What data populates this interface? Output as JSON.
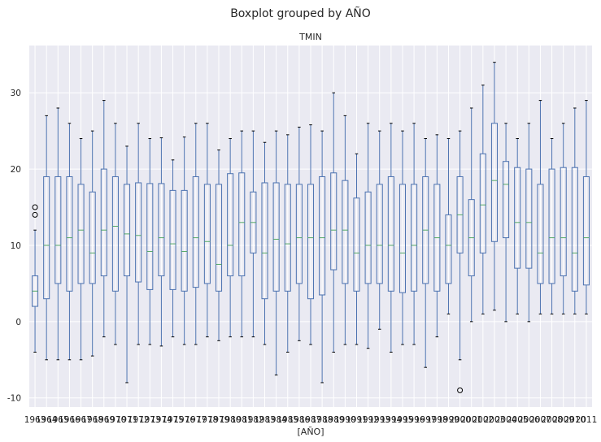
{
  "chart_data": {
    "type": "boxplot",
    "suptitle": "Boxplot grouped by AÑO",
    "title": "TMIN",
    "xlabel": "[AÑO]",
    "ylabel": "",
    "ylim": [
      -11.2,
      36.2
    ],
    "yticks": [
      -10,
      0,
      10,
      20,
      30
    ],
    "grid": true,
    "colors": {
      "background": "#eaeaf2",
      "grid": "#ffffff",
      "box": "#4c72b0",
      "median": "#55a868",
      "flier": "#000000",
      "text": "#262626"
    },
    "boxes": [
      {
        "x": "1963",
        "whislo": -4,
        "q1": 2,
        "med": 4,
        "q3": 6,
        "whishi": 12,
        "fliers": [
          14,
          15
        ]
      },
      {
        "x": "1964",
        "whislo": -5,
        "q1": 3,
        "med": 10,
        "q3": 19,
        "whishi": 27,
        "fliers": []
      },
      {
        "x": "1965",
        "whislo": -5,
        "q1": 5,
        "med": 10,
        "q3": 19,
        "whishi": 28,
        "fliers": []
      },
      {
        "x": "1966",
        "whislo": -5,
        "q1": 4,
        "med": 11,
        "q3": 19,
        "whishi": 26,
        "fliers": []
      },
      {
        "x": "1967",
        "whislo": -5,
        "q1": 5,
        "med": 12,
        "q3": 18,
        "whishi": 24,
        "fliers": []
      },
      {
        "x": "1968",
        "whislo": -4.5,
        "q1": 5,
        "med": 9,
        "q3": 17,
        "whishi": 25,
        "fliers": []
      },
      {
        "x": "1969",
        "whislo": -2,
        "q1": 6,
        "med": 12,
        "q3": 20,
        "whishi": 29,
        "fliers": []
      },
      {
        "x": "1970",
        "whislo": -3,
        "q1": 4,
        "med": 12.5,
        "q3": 19,
        "whishi": 26,
        "fliers": []
      },
      {
        "x": "1971",
        "whislo": -8,
        "q1": 6,
        "med": 11.5,
        "q3": 18,
        "whishi": 23,
        "fliers": []
      },
      {
        "x": "1972",
        "whislo": -3,
        "q1": 5.2,
        "med": 11.3,
        "q3": 18.2,
        "whishi": 26,
        "fliers": []
      },
      {
        "x": "1973",
        "whislo": -3,
        "q1": 4.2,
        "med": 9.2,
        "q3": 18.1,
        "whishi": 24,
        "fliers": []
      },
      {
        "x": "1974",
        "whislo": -3.2,
        "q1": 6,
        "med": 11,
        "q3": 18.1,
        "whishi": 24.1,
        "fliers": []
      },
      {
        "x": "1975",
        "whislo": -2,
        "q1": 4.2,
        "med": 10.2,
        "q3": 17.2,
        "whishi": 21.2,
        "fliers": []
      },
      {
        "x": "1976",
        "whislo": -3,
        "q1": 4,
        "med": 9.2,
        "q3": 17.2,
        "whishi": 24.2,
        "fliers": []
      },
      {
        "x": "1977",
        "whislo": -3,
        "q1": 4.5,
        "med": 11,
        "q3": 19,
        "whishi": 26,
        "fliers": []
      },
      {
        "x": "1978",
        "whislo": -2,
        "q1": 5,
        "med": 10.5,
        "q3": 18,
        "whishi": 26,
        "fliers": []
      },
      {
        "x": "1979",
        "whislo": -2.5,
        "q1": 4,
        "med": 7.5,
        "q3": 18,
        "whishi": 22.5,
        "fliers": []
      },
      {
        "x": "1980",
        "whislo": -2,
        "q1": 6,
        "med": 10,
        "q3": 19.4,
        "whishi": 24,
        "fliers": []
      },
      {
        "x": "1981",
        "whislo": -2,
        "q1": 6,
        "med": 13,
        "q3": 19.5,
        "whishi": 25,
        "fliers": []
      },
      {
        "x": "1982",
        "whislo": -2,
        "q1": 9,
        "med": 13,
        "q3": 17,
        "whishi": 25,
        "fliers": []
      },
      {
        "x": "1983",
        "whislo": -3,
        "q1": 3,
        "med": 9,
        "q3": 18.2,
        "whishi": 23.5,
        "fliers": []
      },
      {
        "x": "1984",
        "whislo": -7,
        "q1": 4,
        "med": 10.8,
        "q3": 18.2,
        "whishi": 25,
        "fliers": []
      },
      {
        "x": "1985",
        "whislo": -4,
        "q1": 4,
        "med": 10.2,
        "q3": 18,
        "whishi": 24.5,
        "fliers": []
      },
      {
        "x": "1986",
        "whislo": -2.5,
        "q1": 5,
        "med": 11,
        "q3": 18,
        "whishi": 25.5,
        "fliers": []
      },
      {
        "x": "1987",
        "whislo": -3,
        "q1": 3,
        "med": 11,
        "q3": 18,
        "whishi": 25.8,
        "fliers": []
      },
      {
        "x": "1988",
        "whislo": -8,
        "q1": 3.5,
        "med": 11,
        "q3": 19,
        "whishi": 25,
        "fliers": []
      },
      {
        "x": "1989",
        "whislo": -4,
        "q1": 6.8,
        "med": 12,
        "q3": 19.5,
        "whishi": 30,
        "fliers": []
      },
      {
        "x": "1990",
        "whislo": -3,
        "q1": 5,
        "med": 12,
        "q3": 18.5,
        "whishi": 27,
        "fliers": []
      },
      {
        "x": "1991",
        "whislo": -3,
        "q1": 4,
        "med": 9,
        "q3": 16.2,
        "whishi": 22,
        "fliers": []
      },
      {
        "x": "1992",
        "whislo": -3.5,
        "q1": 5,
        "med": 10,
        "q3": 17,
        "whishi": 26,
        "fliers": []
      },
      {
        "x": "1993",
        "whislo": -1,
        "q1": 5,
        "med": 10,
        "q3": 18,
        "whishi": 25,
        "fliers": []
      },
      {
        "x": "1994",
        "whislo": -4,
        "q1": 4,
        "med": 10,
        "q3": 19,
        "whishi": 26,
        "fliers": []
      },
      {
        "x": "1995",
        "whislo": -3,
        "q1": 3.8,
        "med": 9,
        "q3": 18,
        "whishi": 25,
        "fliers": []
      },
      {
        "x": "1996",
        "whislo": -3,
        "q1": 4,
        "med": 10,
        "q3": 18,
        "whishi": 26,
        "fliers": []
      },
      {
        "x": "1997",
        "whislo": -6,
        "q1": 5,
        "med": 12,
        "q3": 19,
        "whishi": 24,
        "fliers": []
      },
      {
        "x": "1998",
        "whislo": -2,
        "q1": 4,
        "med": 11,
        "q3": 18,
        "whishi": 24.5,
        "fliers": []
      },
      {
        "x": "1999",
        "whislo": 1,
        "q1": 5,
        "med": 10,
        "q3": 14,
        "whishi": 24,
        "fliers": []
      },
      {
        "x": "2000",
        "whislo": -5,
        "q1": 9,
        "med": 14,
        "q3": 19,
        "whishi": 25,
        "fliers": [
          -9
        ]
      },
      {
        "x": "2001",
        "whislo": 0,
        "q1": 6,
        "med": 11,
        "q3": 16,
        "whishi": 28,
        "fliers": []
      },
      {
        "x": "2002",
        "whislo": 1,
        "q1": 9,
        "med": 15.3,
        "q3": 22,
        "whishi": 31,
        "fliers": []
      },
      {
        "x": "2003",
        "whislo": 1.5,
        "q1": 10.5,
        "med": 18.5,
        "q3": 26,
        "whishi": 34,
        "fliers": []
      },
      {
        "x": "2004",
        "whislo": 0,
        "q1": 11,
        "med": 18,
        "q3": 21,
        "whishi": 26,
        "fliers": []
      },
      {
        "x": "2005",
        "whislo": 1,
        "q1": 7,
        "med": 13,
        "q3": 20.2,
        "whishi": 24,
        "fliers": []
      },
      {
        "x": "2006",
        "whislo": 0,
        "q1": 7,
        "med": 13,
        "q3": 20,
        "whishi": 26,
        "fliers": []
      },
      {
        "x": "2007",
        "whislo": 1,
        "q1": 5,
        "med": 9,
        "q3": 18,
        "whishi": 29,
        "fliers": []
      },
      {
        "x": "2008",
        "whislo": 1,
        "q1": 5,
        "med": 11,
        "q3": 20,
        "whishi": 24,
        "fliers": []
      },
      {
        "x": "2009",
        "whislo": 1,
        "q1": 6,
        "med": 11,
        "q3": 20.2,
        "whishi": 26,
        "fliers": []
      },
      {
        "x": "2010",
        "whislo": 1,
        "q1": 4,
        "med": 9,
        "q3": 20.2,
        "whishi": 28,
        "fliers": []
      },
      {
        "x": "2011",
        "whislo": 1,
        "q1": 4.8,
        "med": 11,
        "q3": 19,
        "whishi": 29,
        "fliers": []
      }
    ]
  }
}
